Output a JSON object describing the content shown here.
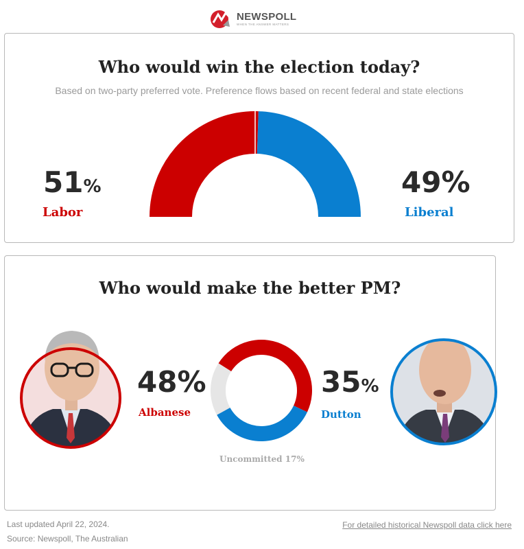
{
  "brand": {
    "name": "NEWSPOLL",
    "tagline": "WHEN THE ANSWER MATTERS"
  },
  "election": {
    "title": "Who would win the election today?",
    "subtitle": "Based on two-party preferred vote. Preference flows based on recent federal and state elections",
    "labor": {
      "value": "51",
      "suffix": "%",
      "label": "Labor",
      "color": "#cc0000"
    },
    "liberal": {
      "value": "49%",
      "label": "Liberal",
      "color": "#0a7fd0"
    }
  },
  "pm": {
    "title": "Who would make the better PM?",
    "albanese": {
      "value": "48%",
      "label": "Albanese",
      "color": "#cc0000"
    },
    "dutton": {
      "value": "35",
      "suffix": "%",
      "label": "Dutton",
      "color": "#0a7fd0"
    },
    "uncommitted_label": "Uncommitted 17%",
    "uncommitted_color": "#e6e6e6"
  },
  "footer": {
    "updated": "Last updated April 22, 2024.",
    "source": "Source: Newspoll, The Australian",
    "link": "For detailed historical Newspoll data click here"
  },
  "chart_data": [
    {
      "type": "pie",
      "title": "Who would win the election today?",
      "categories": [
        "Labor",
        "Liberal"
      ],
      "values": [
        51,
        49
      ],
      "colors": [
        "#cc0000",
        "#0a7fd0"
      ],
      "style": "half-donut"
    },
    {
      "type": "pie",
      "title": "Who would make the better PM?",
      "categories": [
        "Albanese",
        "Dutton",
        "Uncommitted"
      ],
      "values": [
        48,
        35,
        17
      ],
      "colors": [
        "#cc0000",
        "#0a7fd0",
        "#e6e6e6"
      ],
      "style": "donut"
    }
  ]
}
